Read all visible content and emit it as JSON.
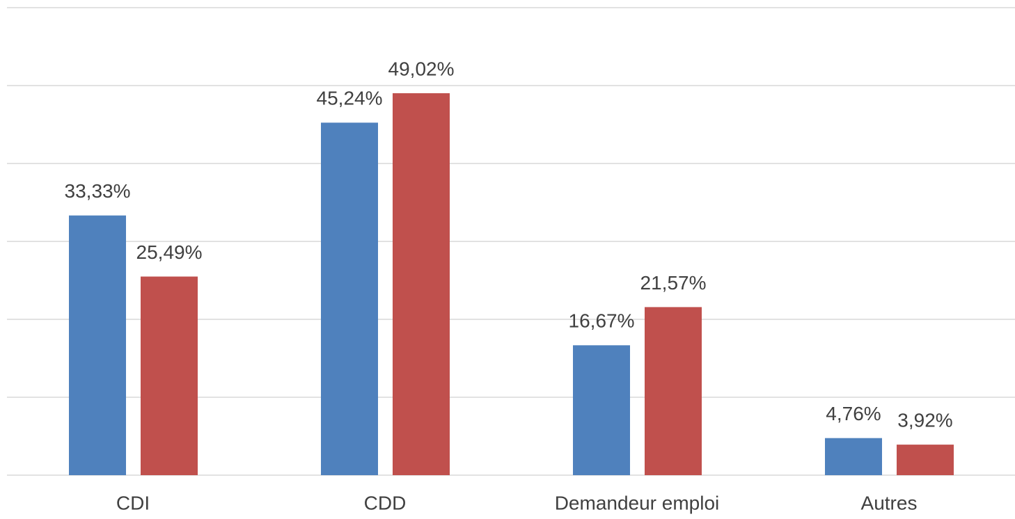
{
  "chart_data": {
    "type": "bar",
    "categories": [
      "CDI",
      "CDD",
      "Demandeur emploi",
      "Autres"
    ],
    "series": [
      {
        "color": "#4f81bd",
        "values": [
          33.33,
          45.24,
          16.67,
          4.76
        ],
        "value_labels": [
          "33,33%",
          "45,24%",
          "16,67%",
          "4,76%"
        ]
      },
      {
        "color": "#c0504d",
        "values": [
          25.49,
          49.02,
          21.57,
          3.92
        ],
        "value_labels": [
          "25,49%",
          "49,02%",
          "21,57%",
          "3,92%"
        ]
      }
    ],
    "ylim": [
      0,
      60
    ],
    "yticks": [
      0,
      10,
      20,
      30,
      40,
      50,
      60
    ],
    "grid": true
  }
}
